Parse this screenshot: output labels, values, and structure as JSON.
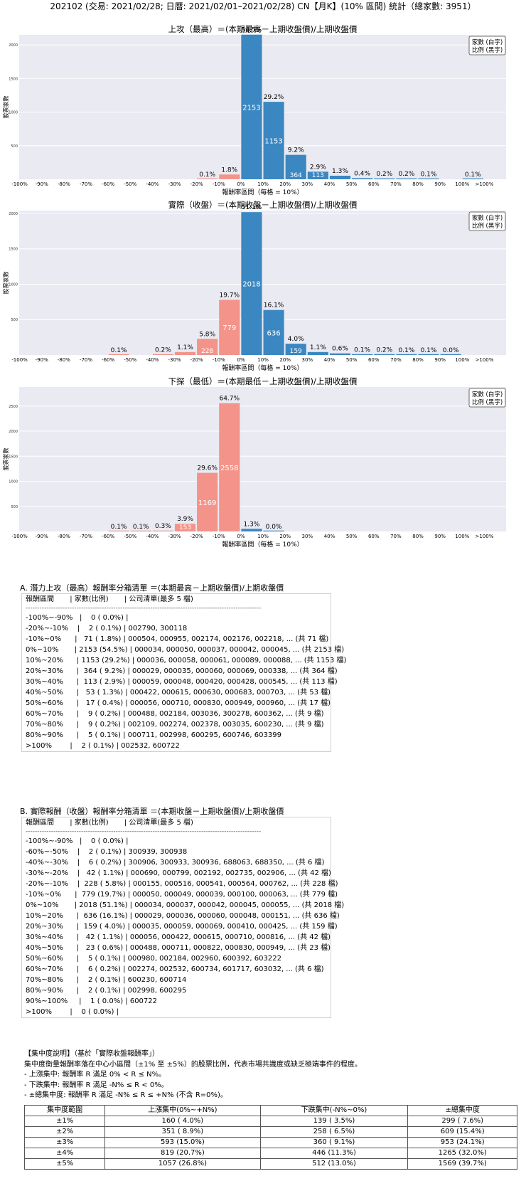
{
  "header": {
    "title": "202102 (交易: 2021/02/28; 日曆: 2021/02/01–2021/02/28) CN【月K】(10% 區間) 統計（總家數: 3951）"
  },
  "legend_box": {
    "line1": "家數 (白字)",
    "line2": "比例 (黑字)"
  },
  "colors": {
    "positive": "#3a87c2",
    "negative": "#f4938a",
    "plot_bg": "#eaeaf2",
    "grid": "#ffffff"
  },
  "chart_data": [
    {
      "type": "bar",
      "title": "上攻（最高）＝(本期最高－上期收盤價)/上期收盤價",
      "xlabel": "報酬率區間（每格 = 10%）",
      "ylabel": "股票家數",
      "ylim": [
        0,
        2150
      ],
      "yticks": [
        "500",
        "1000",
        "1500",
        "2000"
      ],
      "ytick_values": [
        500,
        1000,
        1500,
        2000
      ],
      "categories": [
        "-100%~-90%",
        "-90%~-80%",
        "-80%~-70%",
        "-70%~-60%",
        "-60%~-50%",
        "-50%~-40%",
        "-40%~-30%",
        "-30%~-20%",
        "-20%~-10%",
        "-10%~0%",
        "0%~10%",
        "10%~20%",
        "20%~30%",
        "30%~40%",
        "40%~50%",
        "50%~60%",
        "60%~70%",
        "70%~80%",
        "80%~90%",
        ">100%"
      ],
      "xticks": [
        "-100%",
        "-90%",
        "-80%",
        "-70%",
        "-60%",
        "-50%",
        "-40%",
        "-30%",
        "-20%",
        "-10%",
        "0%",
        "10%",
        "20%",
        "30%",
        "40%",
        "50%",
        "60%",
        "70%",
        "80%",
        "90%",
        "100%",
        ">100%"
      ],
      "counts": [
        0,
        0,
        0,
        0,
        0,
        0,
        0,
        0,
        2,
        71,
        2153,
        1153,
        364,
        113,
        53,
        17,
        9,
        9,
        5,
        2
      ],
      "pcts": [
        "",
        "",
        "",
        "",
        "",
        "",
        "",
        "",
        "0.1%",
        "1.8%",
        "54.5%",
        "29.2%",
        "9.2%",
        "2.9%",
        "1.3%",
        "0.4%",
        "0.2%",
        "0.2%",
        "0.1%",
        "0.1%"
      ],
      "count_labels": [
        "",
        "",
        "",
        "",
        "",
        "",
        "",
        "",
        "",
        "",
        "2153",
        "1153",
        "364",
        "113",
        "",
        "",
        "",
        "",
        "",
        ""
      ],
      "positions": [
        0,
        1,
        2,
        3,
        4,
        5,
        6,
        7,
        8,
        9,
        10,
        11,
        12,
        13,
        14,
        15,
        16,
        17,
        18,
        20
      ],
      "colors": [
        "n",
        "n",
        "n",
        "n",
        "n",
        "n",
        "n",
        "n",
        "n",
        "n",
        "p",
        "p",
        "p",
        "p",
        "p",
        "p",
        "p",
        "p",
        "p",
        "p"
      ]
    },
    {
      "type": "bar",
      "title": "實際（收盤）＝(本期收盤－上期收盤價)/上期收盤價",
      "xlabel": "報酬率區間（每格 = 10%）",
      "ylabel": "股票家數",
      "ylim": [
        0,
        2040
      ],
      "yticks": [
        "500",
        "1000",
        "1500",
        "2000"
      ],
      "ytick_values": [
        500,
        1000,
        1500,
        2000
      ],
      "categories": [
        "-100%~-90%",
        "-90%~-80%",
        "-80%~-70%",
        "-70%~-60%",
        "-60%~-50%",
        "-50%~-40%",
        "-40%~-30%",
        "-30%~-20%",
        "-20%~-10%",
        "-10%~0%",
        "0%~10%",
        "10%~20%",
        "20%~30%",
        "30%~40%",
        "40%~50%",
        "50%~60%",
        "60%~70%",
        "70%~80%",
        "80%~90%",
        "90%~100%",
        ">100%"
      ],
      "xticks": [
        "-100%",
        "-90%",
        "-80%",
        "-70%",
        "-60%",
        "-50%",
        "-40%",
        "-30%",
        "-20%",
        "-10%",
        "0%",
        "10%",
        "20%",
        "30%",
        "40%",
        "50%",
        "60%",
        "70%",
        "80%",
        "90%",
        "100%",
        ">100%"
      ],
      "counts": [
        0,
        0,
        0,
        0,
        2,
        0,
        6,
        42,
        228,
        779,
        2018,
        636,
        159,
        42,
        23,
        5,
        6,
        2,
        2,
        1,
        0
      ],
      "pcts": [
        "",
        "",
        "",
        "",
        "0.1%",
        "",
        "0.2%",
        "1.1%",
        "5.8%",
        "19.7%",
        "51.1%",
        "16.1%",
        "4.0%",
        "1.1%",
        "0.6%",
        "0.1%",
        "0.2%",
        "0.1%",
        "0.1%",
        "0.0%",
        ""
      ],
      "count_labels": [
        "",
        "",
        "",
        "",
        "",
        "",
        "",
        "",
        "228",
        "779",
        "2018",
        "636",
        "159",
        "",
        "",
        "",
        "",
        "",
        "",
        "",
        ""
      ],
      "positions": [
        0,
        1,
        2,
        3,
        4,
        5,
        6,
        7,
        8,
        9,
        10,
        11,
        12,
        13,
        14,
        15,
        16,
        17,
        18,
        19,
        20
      ],
      "colors": [
        "n",
        "n",
        "n",
        "n",
        "n",
        "n",
        "n",
        "n",
        "n",
        "n",
        "p",
        "p",
        "p",
        "p",
        "p",
        "p",
        "p",
        "p",
        "p",
        "p",
        "p"
      ]
    },
    {
      "type": "bar",
      "title": "下探（最低）＝(本期最低－上期收盤價)/上期收盤價",
      "xlabel": "報酬率區間（每格 = 10%）",
      "ylabel": "股票家數",
      "ylim": [
        0,
        2880
      ],
      "yticks": [
        "500",
        "1000",
        "1500",
        "2000",
        "2500"
      ],
      "ytick_values": [
        500,
        1000,
        1500,
        2000,
        2500
      ],
      "categories": [
        "-100%~-90%",
        "-90%~-80%",
        "-80%~-70%",
        "-70%~-60%",
        "-60%~-50%",
        "-50%~-40%",
        "-40%~-30%",
        "-30%~-20%",
        "-20%~-10%",
        "-10%~0%",
        "0%~10%",
        "10%~20%"
      ],
      "xticks": [
        "-100%",
        "-90%",
        "-80%",
        "-70%",
        "-60%",
        "-50%",
        "-40%",
        "-30%",
        "-20%",
        "-10%",
        "0%",
        "10%",
        "20%",
        "30%",
        "40%",
        "50%",
        "60%",
        "70%",
        "80%",
        "90%",
        "100%",
        ">100%"
      ],
      "counts": [
        0,
        0,
        0,
        0,
        3,
        3,
        11,
        153,
        1169,
        2558,
        52,
        1
      ],
      "pcts": [
        "",
        "",
        "",
        "",
        "0.1%",
        "0.1%",
        "0.3%",
        "3.9%",
        "29.6%",
        "64.7%",
        "1.3%",
        "0.0%"
      ],
      "count_labels": [
        "",
        "",
        "",
        "",
        "",
        "",
        "",
        "153",
        "1169",
        "2558",
        "",
        ""
      ],
      "positions": [
        0,
        1,
        2,
        3,
        4,
        5,
        6,
        7,
        8,
        9,
        10,
        11
      ],
      "colors": [
        "n",
        "n",
        "n",
        "n",
        "n",
        "n",
        "n",
        "n",
        "n",
        "n",
        "p",
        "p"
      ]
    }
  ],
  "section_a": {
    "title": "A. 潛力上攻（最高）報酬率分箱清單 ＝(本期最高－上期收盤價)/上期收盤價",
    "header": "報酬區間       | 家數(比例)       | 公司清單(最多 5 檔)",
    "separator": "------------------------------------------------------------------------------------------------------",
    "rows": [
      "-100%~-90%   |    0 ( 0.0%) |",
      "-20%~-10%    |    2 ( 0.1%) | 002790, 300118",
      "-10%~0%      |   71 ( 1.8%) | 000504, 000955, 002174, 002176, 002218, ... (共 71 檔)",
      "0%~10%       | 2153 (54.5%) | 000034, 000050, 000037, 000042, 000045, ... (共 2153 檔)",
      "10%~20%      | 1153 (29.2%) | 000036, 000058, 000061, 000089, 000088, ... (共 1153 檔)",
      "20%~30%      |  364 ( 9.2%) | 000029, 000035, 000060, 000069, 000338, ... (共 364 檔)",
      "30%~40%      |  113 ( 2.9%) | 000059, 000048, 000420, 000428, 000545, ... (共 113 檔)",
      "40%~50%      |   53 ( 1.3%) | 000422, 000615, 000630, 000683, 000703, ... (共 53 檔)",
      "50%~60%      |   17 ( 0.4%) | 000056, 000710, 000830, 000949, 000960, ... (共 17 檔)",
      "60%~70%      |    9 ( 0.2%) | 000488, 002184, 003036, 300278, 600362, ... (共 9 檔)",
      "70%~80%      |    9 ( 0.2%) | 002109, 002274, 002378, 003035, 600230, ... (共 9 檔)",
      "80%~90%      |    5 ( 0.1%) | 000711, 002998, 600295, 600746, 603399",
      ">100%        |    2 ( 0.1%) | 002532, 600722"
    ]
  },
  "section_b": {
    "title": "B. 實際報酬（收盤）報酬率分箱清單 ＝(本期收盤－上期收盤價)/上期收盤價",
    "header": "報酬區間       | 家數(比例)       | 公司清單(最多 5 檔)",
    "separator": "------------------------------------------------------------------------------------------------------",
    "rows": [
      "-100%~-90%   |    0 ( 0.0%) |",
      "-60%~-50%    |    2 ( 0.1%) | 300939, 300938",
      "-40%~-30%    |    6 ( 0.2%) | 300906, 300933, 300936, 688063, 688350, ... (共 6 檔)",
      "-30%~-20%    |   42 ( 1.1%) | 000690, 000799, 002192, 002735, 002906, ... (共 42 檔)",
      "-20%~-10%    |  228 ( 5.8%) | 000155, 000516, 000541, 000564, 000762, ... (共 228 檔)",
      "-10%~0%      |  779 (19.7%) | 000050, 000049, 000039, 000100, 000063, ... (共 779 檔)",
      "0%~10%       | 2018 (51.1%) | 000034, 000037, 000042, 000045, 000055, ... (共 2018 檔)",
      "10%~20%      |  636 (16.1%) | 000029, 000036, 000060, 000048, 000151, ... (共 636 檔)",
      "20%~30%      |  159 ( 4.0%) | 000035, 000059, 000069, 000410, 000425, ... (共 159 檔)",
      "30%~40%      |   42 ( 1.1%) | 000056, 000422, 000615, 000710, 000816, ... (共 42 檔)",
      "40%~50%      |   23 ( 0.6%) | 000488, 000711, 000822, 000830, 000949, ... (共 23 檔)",
      "50%~60%      |    5 ( 0.1%) | 000980, 002184, 002960, 600392, 603222",
      "60%~70%      |    6 ( 0.2%) | 002274, 002532, 600734, 601717, 603032, ... (共 6 檔)",
      "70%~80%      |    2 ( 0.1%) | 600230, 600714",
      "80%~90%      |    2 ( 0.1%) | 002998, 600295",
      "90%~100%     |    1 ( 0.0%) | 600722",
      ">100%        |    0 ( 0.0%) |"
    ]
  },
  "concentration": {
    "lines": [
      "【集中度說明】（基於「實際收盤報酬率」）",
      "集中度衡量報酬率落在中心小區間（±1% 至 ±5%）的股票比例，代表市場共識度或缺乏極端事件的程度。",
      " - 上漲集中: 報酬率 R 滿足 0% < R ≤ N%。",
      " - 下跌集中: 報酬率 R 滿足 -N% ≤ R < 0%。",
      " - ±總集中度: 報酬率 R 滿足 -N% ≤ R ≤ +N% (不含 R=0%)。"
    ],
    "headers": [
      "集中度範圍",
      "上漲集中(0%~+N%)",
      "下跌集中(-N%~0%)",
      "±總集中度"
    ],
    "rows": [
      [
        "±1%",
        "160 ( 4.0%)",
        "139 ( 3.5%)",
        "299 ( 7.6%)"
      ],
      [
        "±2%",
        "351 ( 8.9%)",
        "258 ( 6.5%)",
        "609 (15.4%)"
      ],
      [
        "±3%",
        "593 (15.0%)",
        "360 ( 9.1%)",
        "953 (24.1%)"
      ],
      [
        "±4%",
        "819 (20.7%)",
        "446 (11.3%)",
        "1265 (32.0%)"
      ],
      [
        "±5%",
        "1057 (26.8%)",
        "512 (13.0%)",
        "1569 (39.7%)"
      ]
    ]
  }
}
